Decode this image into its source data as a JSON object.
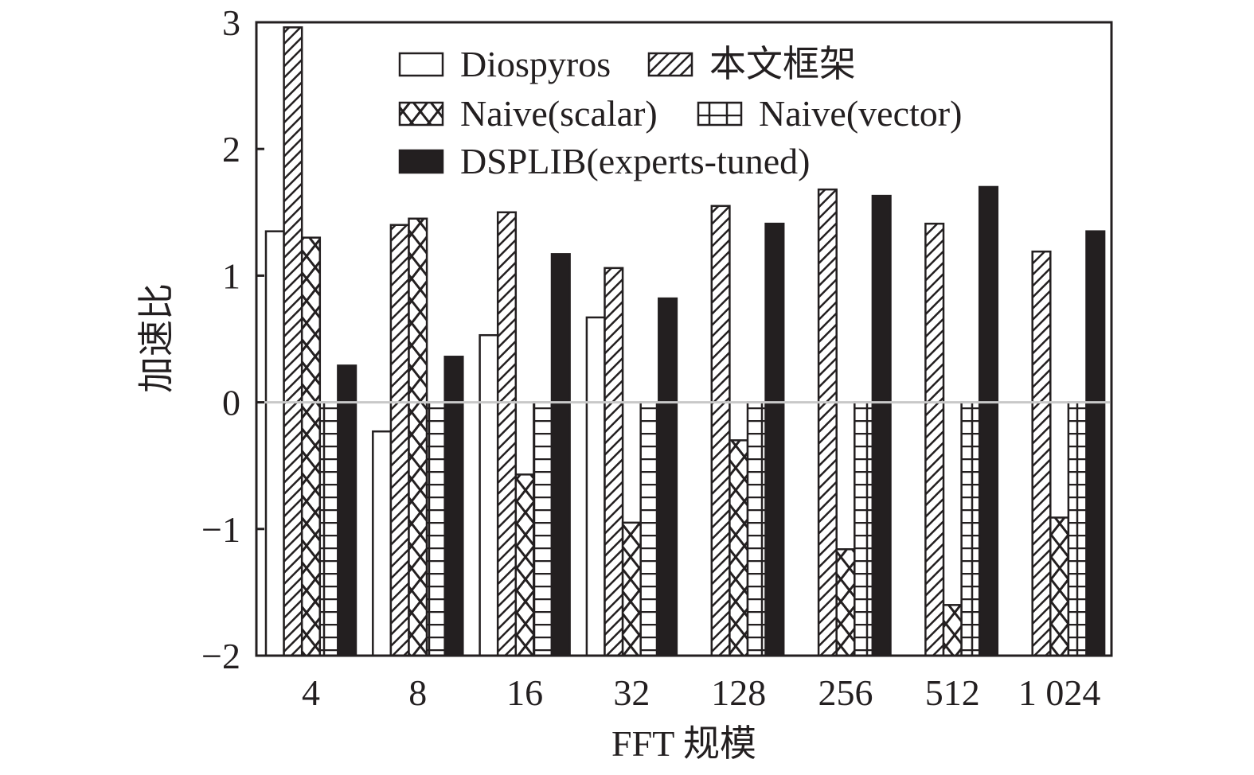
{
  "chart_data": {
    "type": "bar",
    "title": "",
    "xlabel": "FFT 规模",
    "ylabel": "加速比",
    "ylim": [
      -2,
      3
    ],
    "yticks": [
      3,
      2,
      1,
      0,
      -1,
      -2
    ],
    "ytick_labels": [
      "3",
      "2",
      "1",
      "0",
      "−1",
      "−2"
    ],
    "bar_baseline": -2,
    "categories": [
      "4",
      "8",
      "16",
      "32",
      "128",
      "256",
      "512",
      "1 024"
    ],
    "legend_placement": "top-center",
    "series": [
      {
        "name": "Diospyros",
        "pattern": "empty",
        "values": [
          1.35,
          -0.23,
          0.53,
          0.67,
          -2,
          -2,
          -2,
          -2
        ]
      },
      {
        "name": "本文框架",
        "pattern": "diagonal",
        "values": [
          2.96,
          1.4,
          1.5,
          1.06,
          1.55,
          1.68,
          1.41,
          1.19
        ]
      },
      {
        "name": "Naive(scalar)",
        "pattern": "crosshatch",
        "values": [
          1.3,
          1.45,
          -0.57,
          -0.95,
          -0.3,
          -1.16,
          -1.6,
          -0.91
        ]
      },
      {
        "name": "Naive(vector)",
        "pattern": "grid",
        "values": [
          0,
          0,
          0,
          0,
          0,
          0,
          0,
          0
        ]
      },
      {
        "name": "DSPLIB(experts-tuned)",
        "pattern": "solid",
        "values": [
          0.29,
          0.36,
          1.17,
          0.82,
          1.41,
          1.63,
          1.7,
          1.35
        ]
      }
    ],
    "colors": {
      "ink": "#231f20",
      "zero_line": "#c8c8c8"
    }
  }
}
